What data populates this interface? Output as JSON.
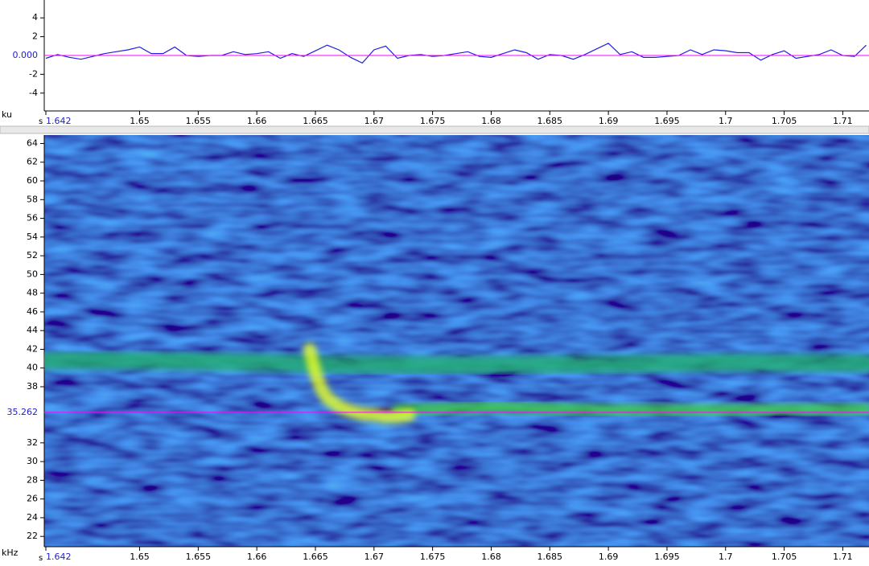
{
  "chart_data": [
    {
      "type": "line",
      "y_label": "ku",
      "x_label": "s",
      "xlim": [
        1.642,
        1.7121
      ],
      "ylim": [
        -5.9,
        5.9
      ],
      "xticks": [
        1.642,
        1.65,
        1.655,
        1.66,
        1.665,
        1.67,
        1.675,
        1.68,
        1.685,
        1.69,
        1.695,
        1.7,
        1.705,
        1.71
      ],
      "yticks": [
        4,
        2,
        -2,
        -4
      ],
      "cursor": {
        "value": 0,
        "label": "0.000",
        "color": "#ff00ff"
      },
      "x": [
        1.642,
        1.643,
        1.644,
        1.645,
        1.646,
        1.647,
        1.648,
        1.649,
        1.65,
        1.651,
        1.652,
        1.653,
        1.654,
        1.655,
        1.656,
        1.657,
        1.658,
        1.659,
        1.66,
        1.661,
        1.662,
        1.663,
        1.664,
        1.665,
        1.666,
        1.667,
        1.668,
        1.669,
        1.67,
        1.671,
        1.672,
        1.673,
        1.674,
        1.675,
        1.676,
        1.677,
        1.678,
        1.679,
        1.68,
        1.681,
        1.682,
        1.683,
        1.684,
        1.685,
        1.686,
        1.687,
        1.688,
        1.689,
        1.69,
        1.691,
        1.692,
        1.693,
        1.694,
        1.695,
        1.696,
        1.697,
        1.698,
        1.699,
        1.7,
        1.701,
        1.702,
        1.703,
        1.704,
        1.705,
        1.706,
        1.707,
        1.708,
        1.709,
        1.71,
        1.711,
        1.712
      ],
      "series": [
        {
          "color": "#1f1fe0",
          "values": [
            -0.3,
            0.1,
            -0.2,
            -0.4,
            -0.1,
            0.2,
            0.4,
            0.6,
            0.9,
            0.2,
            0.2,
            0.9,
            0,
            -0.1,
            0,
            0,
            0.4,
            0.1,
            0.2,
            0.4,
            -0.3,
            0.2,
            -0.1,
            0.5,
            1.1,
            0.6,
            -0.2,
            -0.8,
            0.6,
            1.0,
            -0.3,
            0,
            0.1,
            -0.1,
            0,
            0.2,
            0.4,
            -0.1,
            -0.2,
            0.2,
            0.6,
            0.3,
            -0.4,
            0.1,
            0,
            -0.4,
            0.1,
            0.7,
            1.3,
            0.1,
            0.4,
            -0.2,
            -0.2,
            -0.1,
            0,
            0.6,
            0.1,
            0.6,
            0.5,
            0.3,
            0.3,
            -0.5,
            0.1,
            0.5,
            -0.3,
            -0.1,
            0.1,
            0.6,
            0,
            -0.1,
            1.1
          ]
        }
      ]
    },
    {
      "type": "spectrogram",
      "y_label": "kHz",
      "x_label": "s",
      "xlim": [
        1.642,
        1.7121
      ],
      "ylim": [
        20.9,
        64.9
      ],
      "xticks": [
        1.642,
        1.65,
        1.655,
        1.66,
        1.665,
        1.67,
        1.675,
        1.68,
        1.685,
        1.69,
        1.695,
        1.7,
        1.705,
        1.71
      ],
      "yticks": [
        22,
        24,
        26,
        28,
        30,
        32,
        38,
        40,
        42,
        44,
        46,
        48,
        50,
        52,
        54,
        56,
        58,
        60,
        62,
        64
      ],
      "cursor": {
        "value": 35.262,
        "label": "35.262",
        "color": "#ff00ff"
      },
      "series": [
        {
          "color": "#20b070",
          "x": [
            1.642,
            1.65,
            1.66,
            1.665,
            1.675,
            1.69,
            1.7,
            1.712
          ],
          "values": [
            40.8,
            40.8,
            40.6,
            40.4,
            40.3,
            40.4,
            40.6,
            40.5
          ]
        },
        {
          "color": "#40d040",
          "x": [
            1.672,
            1.68,
            1.69,
            1.7,
            1.712
          ],
          "values": [
            35.5,
            35.8,
            35.5,
            35.5,
            35.6
          ]
        },
        {
          "color": "#e8ff20",
          "x": [
            1.6645,
            1.665,
            1.6655,
            1.666,
            1.667,
            1.668,
            1.669,
            1.67,
            1.671,
            1.672,
            1.673
          ],
          "values": [
            42,
            39.5,
            37.8,
            36.8,
            35.9,
            35.4,
            35.1,
            35.0,
            34.8,
            34.8,
            35.0
          ]
        }
      ]
    }
  ]
}
